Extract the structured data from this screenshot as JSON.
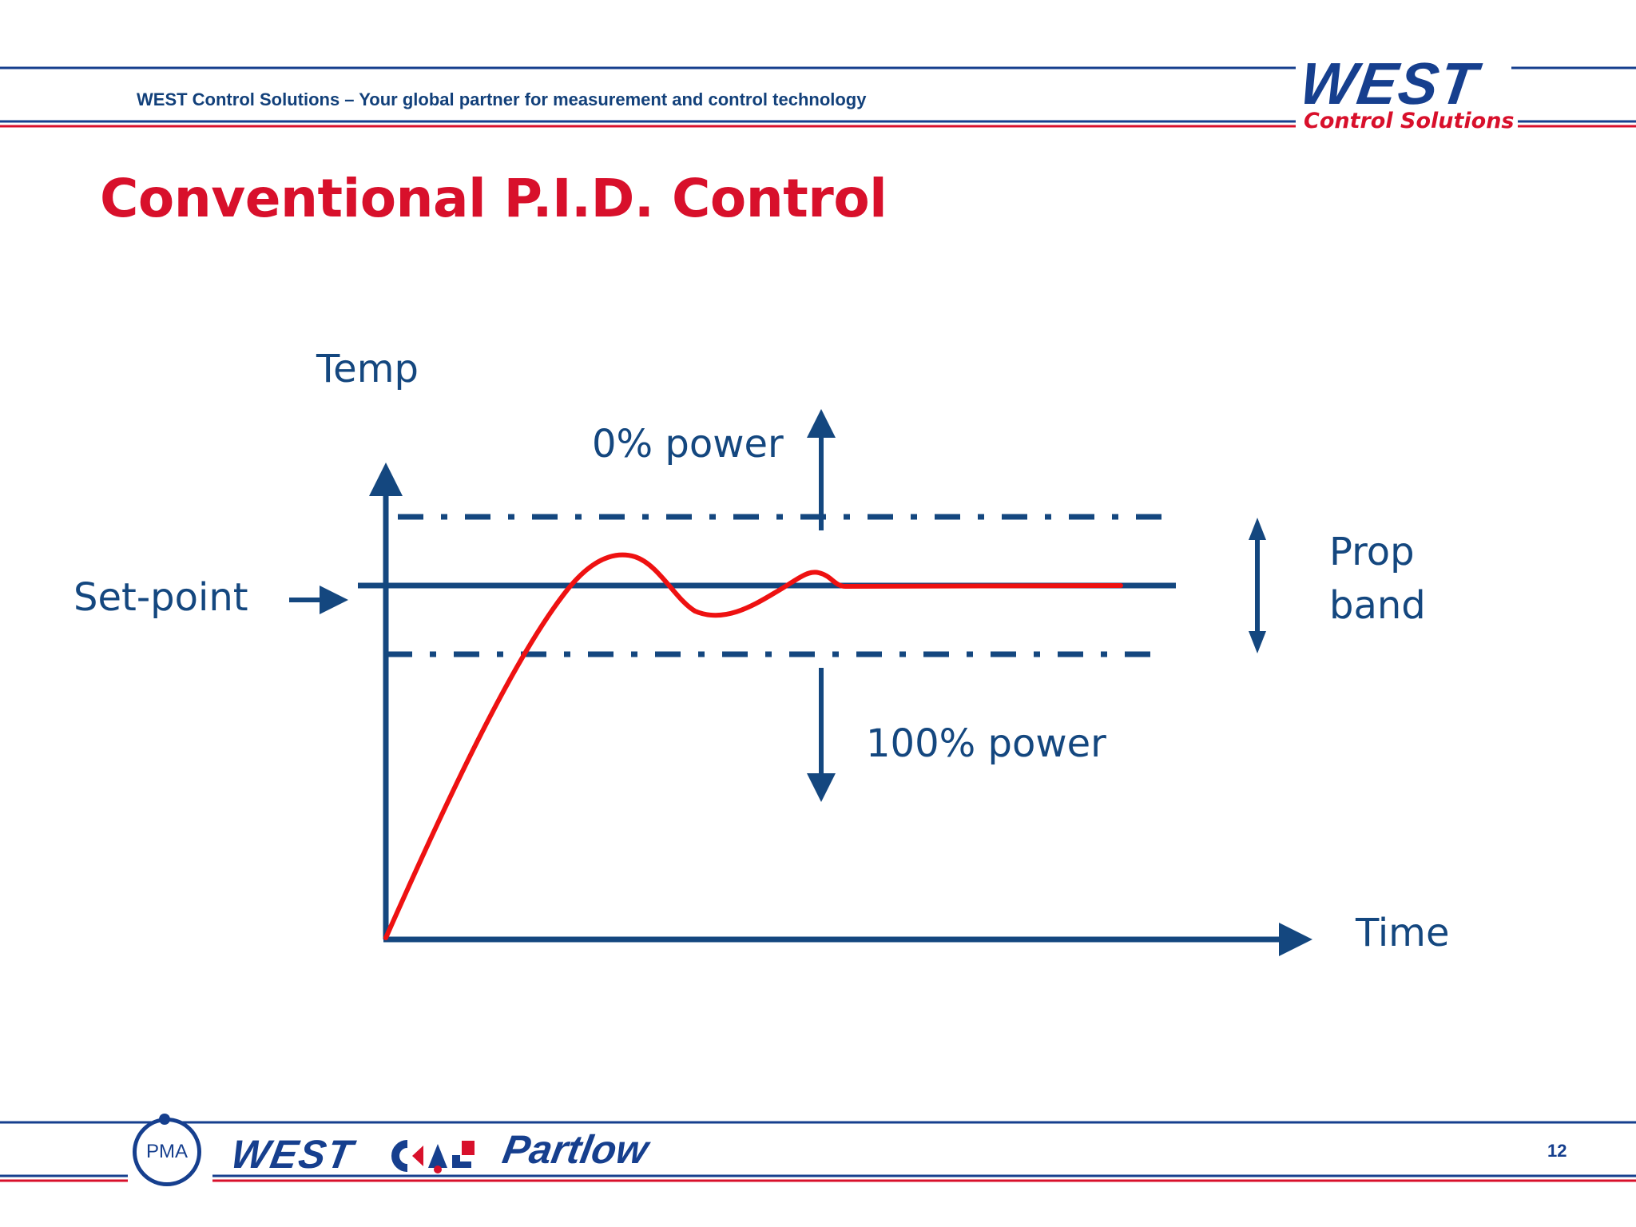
{
  "header": {
    "tagline": "WEST Control Solutions – Your global partner for measurement and control technology",
    "logo_main": "WEST",
    "logo_sub": "Control Solutions"
  },
  "slide": {
    "title": "Conventional P.I.D. Control",
    "page_number": "12"
  },
  "diagram": {
    "y_axis_label": "Temp",
    "x_axis_label": "Time",
    "setpoint_label": "Set-point",
    "upper_label": "0% power",
    "lower_label": "100% power",
    "band_label_line1": "Prop",
    "band_label_line2": "band"
  },
  "footer": {
    "brand_pma": "PMA",
    "brand_west": "WEST",
    "brand_partlow": "Partlow"
  },
  "colors": {
    "title_red": "#d8102b",
    "diagram_blue": "#14477f",
    "response_red": "#ee1111",
    "brand_blue": "#163f8e"
  }
}
